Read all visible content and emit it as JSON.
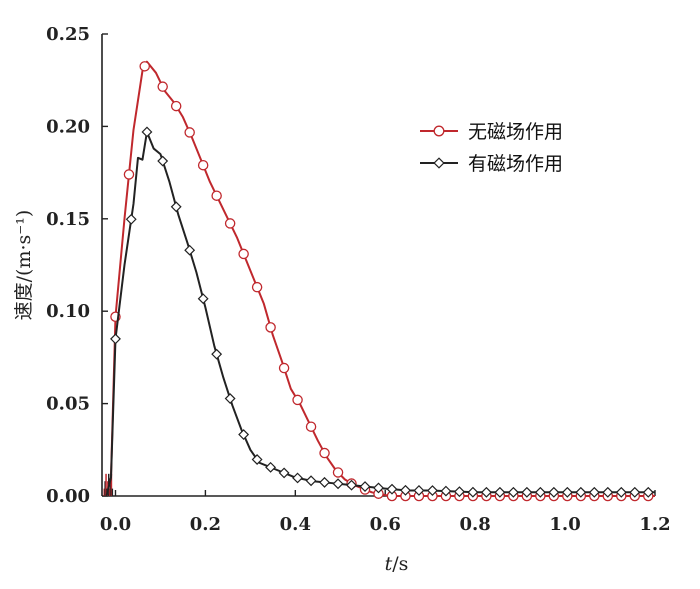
{
  "chart_data": {
    "type": "line",
    "xlabel_var": "t",
    "xlabel_unit": "/s",
    "ylabel": "速度/(m·s⁻¹)",
    "xlim": [
      -0.03,
      1.2
    ],
    "ylim": [
      0,
      0.25
    ],
    "x_ticks": [
      0.0,
      0.2,
      0.4,
      0.6,
      0.8,
      1.0,
      1.2
    ],
    "x_tick_labels": [
      "0.0",
      "0.2",
      "0.4",
      "0.6",
      "0.8",
      "1.0",
      "1.2"
    ],
    "y_ticks": [
      0.0,
      0.05,
      0.1,
      0.15,
      0.2,
      0.25
    ],
    "y_tick_labels": [
      "0.00",
      "0.05",
      "0.10",
      "0.15",
      "0.20",
      "0.25"
    ],
    "legend_position": "top-right",
    "series": [
      {
        "name": "无磁场作用",
        "color": "#c0282d",
        "marker": "circle",
        "x": [
          -0.02,
          -0.01,
          0.0,
          0.02,
          0.04,
          0.06,
          0.07,
          0.09,
          0.11,
          0.13,
          0.15,
          0.17,
          0.19,
          0.21,
          0.23,
          0.25,
          0.27,
          0.29,
          0.31,
          0.33,
          0.35,
          0.37,
          0.39,
          0.41,
          0.43,
          0.45,
          0.47,
          0.49,
          0.51,
          0.53,
          0.55,
          0.57,
          0.59,
          0.61,
          0.63,
          0.65,
          0.67,
          0.7,
          0.75,
          0.8,
          0.85,
          0.9,
          0.95,
          1.0,
          1.05,
          1.1,
          1.15,
          1.2
        ],
        "y": [
          0.0,
          0.01,
          0.097,
          0.15,
          0.198,
          0.23,
          0.235,
          0.229,
          0.219,
          0.213,
          0.205,
          0.194,
          0.182,
          0.17,
          0.16,
          0.15,
          0.14,
          0.128,
          0.116,
          0.104,
          0.087,
          0.073,
          0.058,
          0.05,
          0.04,
          0.03,
          0.021,
          0.014,
          0.009,
          0.006,
          0.004,
          0.002,
          0.001,
          0.0,
          0.0,
          0.0,
          0.0,
          0.0,
          0.0,
          0.0,
          0.0,
          0.0,
          0.0,
          0.0,
          0.0,
          0.0,
          0.0,
          0.0
        ],
        "marker_x": [
          0.0,
          0.03,
          0.065,
          0.105,
          0.135,
          0.165,
          0.195,
          0.225,
          0.255,
          0.285,
          0.315,
          0.345,
          0.375,
          0.405,
          0.435,
          0.465,
          0.495,
          0.525,
          0.555,
          0.585,
          0.615,
          0.645,
          0.675,
          0.705,
          0.735,
          0.765,
          0.795,
          0.825,
          0.855,
          0.885,
          0.915,
          0.945,
          0.975,
          1.005,
          1.035,
          1.065,
          1.095,
          1.125,
          1.155,
          1.185
        ]
      },
      {
        "name": "有磁场作用",
        "color": "#222222",
        "marker": "diamond",
        "x": [
          -0.02,
          -0.01,
          0.0,
          0.02,
          0.04,
          0.05,
          0.06,
          0.07,
          0.085,
          0.1,
          0.12,
          0.14,
          0.16,
          0.18,
          0.2,
          0.22,
          0.24,
          0.26,
          0.28,
          0.3,
          0.32,
          0.34,
          0.36,
          0.38,
          0.4,
          0.44,
          0.48,
          0.52,
          0.56,
          0.6,
          0.65,
          0.7,
          0.8,
          0.9,
          1.0,
          1.1,
          1.2
        ],
        "y": [
          0.0,
          0.01,
          0.085,
          0.125,
          0.158,
          0.183,
          0.182,
          0.197,
          0.188,
          0.185,
          0.17,
          0.152,
          0.137,
          0.121,
          0.102,
          0.081,
          0.064,
          0.049,
          0.036,
          0.025,
          0.018,
          0.016,
          0.014,
          0.012,
          0.01,
          0.008,
          0.007,
          0.006,
          0.005,
          0.004,
          0.003,
          0.003,
          0.002,
          0.002,
          0.002,
          0.002,
          0.002
        ],
        "marker_x": [
          0.0,
          0.035,
          0.07,
          0.105,
          0.135,
          0.165,
          0.195,
          0.225,
          0.255,
          0.285,
          0.315,
          0.345,
          0.375,
          0.405,
          0.435,
          0.465,
          0.495,
          0.525,
          0.555,
          0.585,
          0.615,
          0.645,
          0.675,
          0.705,
          0.735,
          0.765,
          0.795,
          0.825,
          0.855,
          0.885,
          0.915,
          0.945,
          0.975,
          1.005,
          1.035,
          1.065,
          1.095,
          1.125,
          1.155,
          1.185
        ]
      }
    ]
  }
}
